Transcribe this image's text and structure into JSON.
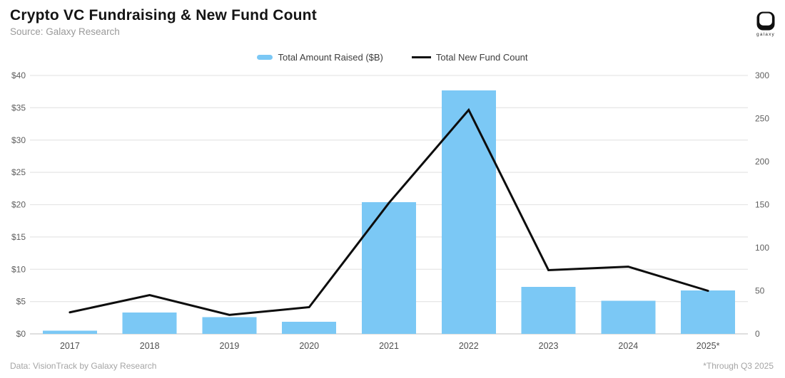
{
  "header": {
    "title": "Crypto VC Fundraising & New Fund Count",
    "subtitle": "Source: Galaxy Research"
  },
  "logo": {
    "label": "galaxy"
  },
  "legend": {
    "items": [
      {
        "label": "Total Amount Raised ($B)",
        "swatch": "bar",
        "color": "#7BC8F5"
      },
      {
        "label": "Total New Fund Count",
        "swatch": "line",
        "color": "#0d0d0d"
      }
    ]
  },
  "footer": {
    "left": "Data: VisionTrack by Galaxy Research",
    "right": "*Through Q3 2025"
  },
  "colors": {
    "bar_fill": "#7BC8F5",
    "line_stroke": "#0d0d0d",
    "gridline": "#e6e6e6",
    "baseline": "#cccccc",
    "axis_label": "#5f5f5f",
    "x_label": "#4f4f4f"
  },
  "chart_data": {
    "type": "bar+line combo, dual axis",
    "title": "Crypto VC Fundraising & New Fund Count",
    "categories": [
      "2017",
      "2018",
      "2019",
      "2020",
      "2021",
      "2022",
      "2023",
      "2024",
      "2025*"
    ],
    "series": [
      {
        "name": "Total Amount Raised ($B)",
        "type": "bar",
        "axis": "left",
        "color": "#7BC8F5",
        "values": [
          0.5,
          3.3,
          2.6,
          1.9,
          20.4,
          37.7,
          7.3,
          5.1,
          6.7
        ]
      },
      {
        "name": "Total New Fund Count",
        "type": "line",
        "axis": "right",
        "color": "#0d0d0d",
        "values": [
          25,
          45,
          22,
          31,
          152,
          260,
          74,
          78,
          50
        ]
      }
    ],
    "left_axis": {
      "min": 0,
      "max": 40,
      "step": 5,
      "ticks": [
        "$0",
        "$5",
        "$10",
        "$15",
        "$20",
        "$25",
        "$30",
        "$35",
        "$40"
      ]
    },
    "right_axis": {
      "min": 0,
      "max": 300,
      "step": 50,
      "ticks": [
        "0",
        "50",
        "100",
        "150",
        "200",
        "250",
        "300"
      ]
    },
    "grid": "horizontal only",
    "legend_position": "top-center",
    "background": "#ffffff",
    "footnote": "*Through Q3 2025"
  }
}
